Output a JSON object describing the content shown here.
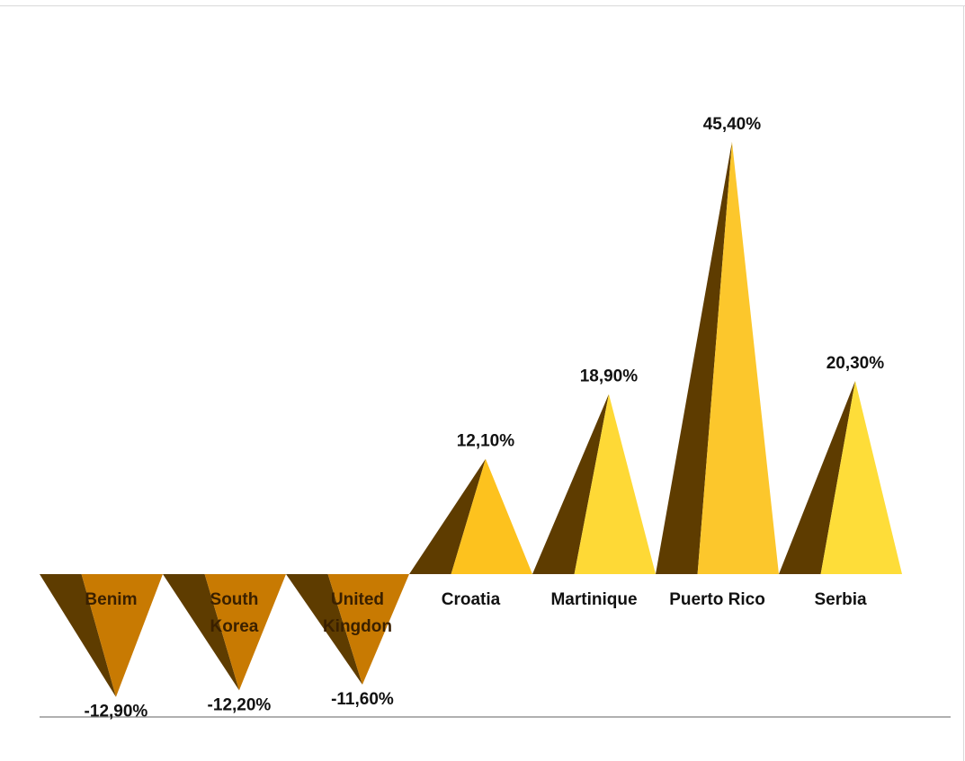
{
  "chart_data": {
    "type": "bar",
    "categories": [
      "Benim",
      "South Korea",
      "United Kingdon",
      "Croatia",
      "Martinique",
      "Puerto Rico",
      "Serbia"
    ],
    "category_lines": [
      [
        "Benim"
      ],
      [
        "South",
        "Korea"
      ],
      [
        "United",
        "Kingdon"
      ],
      [
        "Croatia"
      ],
      [
        "Martinique"
      ],
      [
        "Puerto Rico"
      ],
      [
        "Serbia"
      ]
    ],
    "values": [
      -12.9,
      -12.2,
      -11.6,
      12.1,
      18.9,
      45.4,
      20.3
    ],
    "data_labels": [
      "-12,90%",
      "-12,20%",
      "-11,60%",
      "12,10%",
      "18,90%",
      "45,40%",
      "20,30%"
    ],
    "title": "",
    "xlabel": "",
    "ylabel": "",
    "ylim": [
      -16,
      48
    ],
    "grid": false,
    "legend": "none",
    "colors": {
      "negative_front": "#c87a02",
      "negative_shadow": "#5e3c00",
      "positive_front": [
        "#fdc21e",
        "#fed936",
        "#fcc72c",
        "#fedd39"
      ],
      "positive_shadow": "#5e3c00",
      "baseline": "#b0b0b0",
      "negative_label_text": "#3a2000",
      "positive_label_text": "#111111"
    }
  }
}
